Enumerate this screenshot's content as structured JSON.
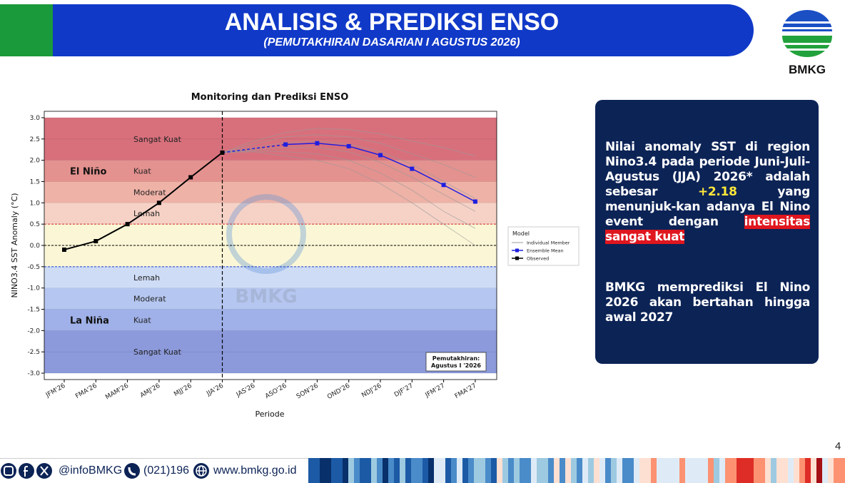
{
  "header": {
    "title": "ANALISIS & PREDIKSI ENSO",
    "subtitle": "(PEMUTAKHIRAN DASARIAN I AGUSTUS 2026)"
  },
  "logo": {
    "text": "BMKG"
  },
  "chart_data": {
    "type": "line",
    "title": "Monitoring dan Prediksi ENSO",
    "x_label": "Periode",
    "y_label": "NINO3.4 SST Anomaly (°C)",
    "categories": [
      "JFM'26",
      "FMA'26",
      "MAM'26",
      "AMJ'26",
      "MJJ'26",
      "JJA'26",
      "JAS'26",
      "ASO'26",
      "SON'26",
      "OND'26",
      "NDJ'26",
      "DJF'27",
      "JFM'27",
      "FMA'27"
    ],
    "ylim": [
      -3.15,
      3.15
    ],
    "yticks": [
      {
        "value": -3,
        "label": "-3.0"
      },
      -2.5,
      {
        "value": -2,
        "label": "-2.0"
      },
      -1.5,
      {
        "value": -1,
        "label": "-1.0"
      },
      -0.5,
      {
        "value": 0,
        "label": "0.0"
      },
      0.5,
      {
        "value": 1,
        "label": "1.0"
      },
      1.5,
      {
        "value": 2,
        "label": "2.0"
      },
      2.5,
      {
        "value": 3,
        "label": "3.0"
      }
    ],
    "bands": [
      {
        "from": 2,
        "to": 3,
        "label": "Sangat Kuat",
        "color": "#d8707c"
      },
      {
        "from": 1.5,
        "to": 2,
        "label": "Kuat",
        "color": "#e4928f"
      },
      {
        "from": 1,
        "to": 1.5,
        "label": "Moderat",
        "color": "#eeb2a7"
      },
      {
        "from": 0.5,
        "to": 1,
        "label": "Lemah",
        "color": "#f6d2c6"
      },
      {
        "from": -0.5,
        "to": 0.5,
        "color": "#fbf7d6"
      },
      {
        "from": -1,
        "to": -0.5,
        "label": "Lemah",
        "color": "#cfdcf6"
      },
      {
        "from": -1.5,
        "to": -1,
        "label": "Moderat",
        "color": "#b5c6f0"
      },
      {
        "from": -2,
        "to": -1.5,
        "label": "Kuat",
        "color": "#a0b1e9"
      },
      {
        "from": -3,
        "to": -2,
        "label": "Sangat Kuat",
        "color": "#8c9adc"
      }
    ],
    "regions": [
      {
        "label": "El Niño",
        "band": 1
      },
      {
        "label": "La Niña",
        "band": 7
      }
    ],
    "thresholds": [
      {
        "value": 0.5,
        "color": "#d62728"
      },
      {
        "value": 0,
        "color": "#000000"
      },
      {
        "value": -0.5,
        "color": "#1f3fd6"
      }
    ],
    "forecast_start_index": 5,
    "members": {
      "name": "Individual Member",
      "color": "#9a9a9a",
      "values": [
        [
          null,
          null,
          null,
          null,
          null,
          2.18,
          2.45,
          2.65,
          2.75,
          2.72,
          2.62,
          2.45,
          2.3,
          2.1
        ],
        [
          null,
          null,
          null,
          null,
          null,
          2.18,
          2.38,
          2.55,
          2.6,
          2.55,
          2.4,
          2.15,
          1.9,
          1.6
        ],
        [
          null,
          null,
          null,
          null,
          null,
          2.18,
          2.3,
          2.42,
          2.45,
          2.38,
          2.2,
          1.9,
          1.5,
          1.1
        ],
        [
          null,
          null,
          null,
          null,
          null,
          2.18,
          2.25,
          2.3,
          2.3,
          2.2,
          1.95,
          1.6,
          1.2,
          0.8
        ],
        [
          null,
          null,
          null,
          null,
          null,
          2.18,
          2.22,
          2.2,
          2.15,
          2.0,
          1.7,
          1.3,
          0.8,
          0.4
        ],
        [
          null,
          null,
          null,
          null,
          null,
          2.18,
          2.2,
          2.1,
          2.0,
          1.8,
          1.45,
          1.0,
          0.5,
          0.0
        ]
      ]
    },
    "series": [
      {
        "name": "Ensemble Mean",
        "color": "#1f1fe0",
        "values": [
          null,
          null,
          null,
          null,
          null,
          null,
          null,
          2.37,
          2.4,
          2.33,
          2.12,
          1.8,
          1.42,
          1.03
        ]
      },
      {
        "name": "Observed",
        "color": "#000000",
        "values": [
          -0.1,
          0.1,
          0.5,
          1.0,
          1.6,
          2.18,
          null,
          null,
          null,
          null,
          null,
          null,
          null,
          null
        ]
      }
    ],
    "legend": {
      "title": "Model",
      "position": "outside right"
    },
    "annotation": [
      "Pemutakhiran:",
      "Agustus I '2026"
    ],
    "watermark": "BMKG"
  },
  "panel": {
    "paragraphs": [
      [
        "Nilai anomaly SST di region Nino3.4 pada periode Juni-Juli-Agustus (JJA) 2026* adalah sebesar ",
        "+2.18",
        " yang menunjuk-kan adanya El Nino event dengan ",
        "intensitas sangat kuat"
      ],
      [
        "BMKG memprediksi El Nino 2026 akan bertahan hingga awal 2027"
      ]
    ]
  },
  "footer": {
    "handle": "@infoBMKG",
    "phone": "(021)196",
    "website": "www.bmkg.go.id",
    "page": "4"
  }
}
